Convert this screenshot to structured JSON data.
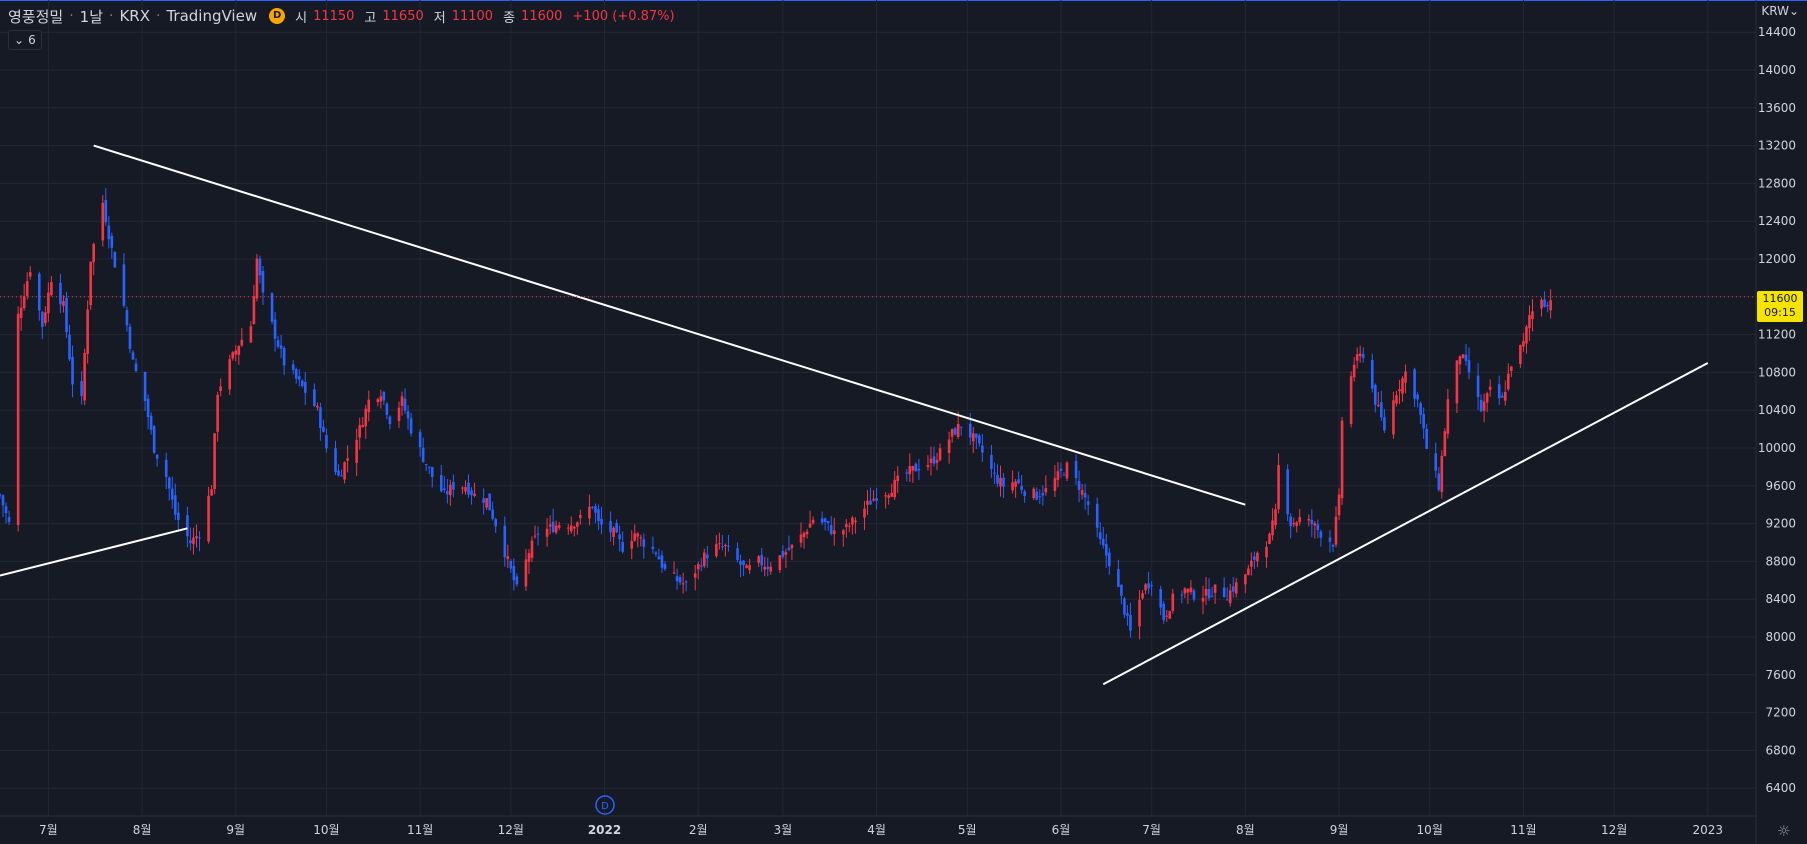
{
  "header": {
    "symbol": "영풍정밀",
    "interval": "1날",
    "exchange": "KRX",
    "source": "TradingView",
    "badge": "D",
    "open_label": "시",
    "open_value": "11150",
    "high_label": "고",
    "high_value": "11650",
    "low_label": "저",
    "low_value": "11100",
    "close_label": "종",
    "close_value": "11600",
    "change": "+100 (+0.87%)",
    "indicator_count": "6"
  },
  "currency": "KRW",
  "price_tag": {
    "price": "11600",
    "time": "09:15"
  },
  "dividend_marker": "D",
  "colors": {
    "background": "#161a25",
    "grid": "#232734",
    "up": "#f23645",
    "down": "#2962ff",
    "trendline": "#ffffff",
    "price_tag": "#f5e400"
  },
  "icons": {
    "settings": "gear-icon",
    "chevron": "chevron-down-icon"
  },
  "chart_data": {
    "type": "candlestick",
    "interval": "1D",
    "ylim": [
      6000,
      14600
    ],
    "y_ticks": [
      6400,
      6800,
      7200,
      7600,
      8000,
      8400,
      8800,
      9200,
      9600,
      10000,
      10400,
      10800,
      11200,
      11600,
      12000,
      12400,
      12800,
      13200,
      13600,
      14000,
      14400
    ],
    "x_ticks": [
      {
        "date": "2021-07-01",
        "label": "7월"
      },
      {
        "date": "2021-08-01",
        "label": "8월"
      },
      {
        "date": "2021-09-01",
        "label": "9월"
      },
      {
        "date": "2021-10-01",
        "label": "10월"
      },
      {
        "date": "2021-11-01",
        "label": "11월"
      },
      {
        "date": "2021-12-01",
        "label": "12월"
      },
      {
        "date": "2022-01-01",
        "label": "2022",
        "bold": true
      },
      {
        "date": "2022-02-01",
        "label": "2월"
      },
      {
        "date": "2022-03-01",
        "label": "3월"
      },
      {
        "date": "2022-04-01",
        "label": "4월"
      },
      {
        "date": "2022-05-01",
        "label": "5월"
      },
      {
        "date": "2022-06-01",
        "label": "6월"
      },
      {
        "date": "2022-07-01",
        "label": "7월"
      },
      {
        "date": "2022-08-01",
        "label": "8월"
      },
      {
        "date": "2022-09-01",
        "label": "9월"
      },
      {
        "date": "2022-10-01",
        "label": "10월"
      },
      {
        "date": "2022-11-01",
        "label": "11월"
      },
      {
        "date": "2022-12-01",
        "label": "12월"
      },
      {
        "date": "2023-01-01",
        "label": "2023"
      }
    ],
    "xlim": [
      "2021-06-15",
      "2023-01-10"
    ],
    "close_path": [
      [
        "2021-06-15",
        9500
      ],
      [
        "2021-06-18",
        9200
      ],
      [
        "2021-06-21",
        11400
      ],
      [
        "2021-06-25",
        11900
      ],
      [
        "2021-06-29",
        11300
      ],
      [
        "2021-07-02",
        11800
      ],
      [
        "2021-07-06",
        11500
      ],
      [
        "2021-07-09",
        10700
      ],
      [
        "2021-07-12",
        10500
      ],
      [
        "2021-07-15",
        12000
      ],
      [
        "2021-07-19",
        12600
      ],
      [
        "2021-07-22",
        12100
      ],
      [
        "2021-07-26",
        11500
      ],
      [
        "2021-07-29",
        10900
      ],
      [
        "2021-08-02",
        10500
      ],
      [
        "2021-08-05",
        10000
      ],
      [
        "2021-08-09",
        9700
      ],
      [
        "2021-08-12",
        9300
      ],
      [
        "2021-08-17",
        9000
      ],
      [
        "2021-08-20",
        9100
      ],
      [
        "2021-08-24",
        9600
      ],
      [
        "2021-08-26",
        10600
      ],
      [
        "2021-08-30",
        10900
      ],
      [
        "2021-09-02",
        11100
      ],
      [
        "2021-09-06",
        11300
      ],
      [
        "2021-09-08",
        12000
      ],
      [
        "2021-09-10",
        11600
      ],
      [
        "2021-09-14",
        11200
      ],
      [
        "2021-09-17",
        10900
      ],
      [
        "2021-09-24",
        10600
      ],
      [
        "2021-09-28",
        10400
      ],
      [
        "2021-10-01",
        10000
      ],
      [
        "2021-10-05",
        9700
      ],
      [
        "2021-10-08",
        9900
      ],
      [
        "2021-10-12",
        10200
      ],
      [
        "2021-10-15",
        10500
      ],
      [
        "2021-10-19",
        10600
      ],
      [
        "2021-10-22",
        10300
      ],
      [
        "2021-10-26",
        10500
      ],
      [
        "2021-10-29",
        10200
      ],
      [
        "2021-11-02",
        9900
      ],
      [
        "2021-11-05",
        9700
      ],
      [
        "2021-11-09",
        9500
      ],
      [
        "2021-11-12",
        9600
      ],
      [
        "2021-11-16",
        9600
      ],
      [
        "2021-11-19",
        9500
      ],
      [
        "2021-11-23",
        9450
      ],
      [
        "2021-11-26",
        9200
      ],
      [
        "2021-11-30",
        8800
      ],
      [
        "2021-12-03",
        8500
      ],
      [
        "2021-12-07",
        8900
      ],
      [
        "2021-12-10",
        9100
      ],
      [
        "2021-12-14",
        9150
      ],
      [
        "2021-12-17",
        9200
      ],
      [
        "2021-12-21",
        9200
      ],
      [
        "2021-12-24",
        9250
      ],
      [
        "2021-12-28",
        9400
      ],
      [
        "2021-12-30",
        9200
      ],
      [
        "2022-01-04",
        9100
      ],
      [
        "2022-01-07",
        8950
      ],
      [
        "2022-01-11",
        9100
      ],
      [
        "2022-01-14",
        9000
      ],
      [
        "2022-01-18",
        8900
      ],
      [
        "2022-01-21",
        8700
      ],
      [
        "2022-01-25",
        8600
      ],
      [
        "2022-01-28",
        8550
      ],
      [
        "2022-02-03",
        8850
      ],
      [
        "2022-02-07",
        8950
      ],
      [
        "2022-02-10",
        8950
      ],
      [
        "2022-02-14",
        8800
      ],
      [
        "2022-02-17",
        8700
      ],
      [
        "2022-02-21",
        8800
      ],
      [
        "2022-02-24",
        8750
      ],
      [
        "2022-02-28",
        8850
      ],
      [
        "2022-03-04",
        8950
      ],
      [
        "2022-03-08",
        9100
      ],
      [
        "2022-03-11",
        9250
      ],
      [
        "2022-03-15",
        9200
      ],
      [
        "2022-03-18",
        9100
      ],
      [
        "2022-03-22",
        9150
      ],
      [
        "2022-03-25",
        9250
      ],
      [
        "2022-03-29",
        9400
      ],
      [
        "2022-04-01",
        9500
      ],
      [
        "2022-04-05",
        9550
      ],
      [
        "2022-04-08",
        9650
      ],
      [
        "2022-04-12",
        9750
      ],
      [
        "2022-04-15",
        9800
      ],
      [
        "2022-04-19",
        9850
      ],
      [
        "2022-04-22",
        9950
      ],
      [
        "2022-04-26",
        10150
      ],
      [
        "2022-04-29",
        10250
      ],
      [
        "2022-05-03",
        10100
      ],
      [
        "2022-05-06",
        9950
      ],
      [
        "2022-05-10",
        9700
      ],
      [
        "2022-05-13",
        9600
      ],
      [
        "2022-05-17",
        9650
      ],
      [
        "2022-05-20",
        9550
      ],
      [
        "2022-05-24",
        9500
      ],
      [
        "2022-05-27",
        9550
      ],
      [
        "2022-05-31",
        9700
      ],
      [
        "2022-06-03",
        9800
      ],
      [
        "2022-06-07",
        9600
      ],
      [
        "2022-06-10",
        9400
      ],
      [
        "2022-06-14",
        9000
      ],
      [
        "2022-06-17",
        8800
      ],
      [
        "2022-06-21",
        8400
      ],
      [
        "2022-06-24",
        8050
      ],
      [
        "2022-06-28",
        8500
      ],
      [
        "2022-07-01",
        8600
      ],
      [
        "2022-07-05",
        8200
      ],
      [
        "2022-07-08",
        8400
      ],
      [
        "2022-07-12",
        8500
      ],
      [
        "2022-07-15",
        8450
      ],
      [
        "2022-07-19",
        8450
      ],
      [
        "2022-07-22",
        8500
      ],
      [
        "2022-07-26",
        8450
      ],
      [
        "2022-07-29",
        8550
      ],
      [
        "2022-08-02",
        8700
      ],
      [
        "2022-08-05",
        8900
      ],
      [
        "2022-08-09",
        9050
      ],
      [
        "2022-08-11",
        9300
      ],
      [
        "2022-08-12",
        9800
      ],
      [
        "2022-08-16",
        9200
      ],
      [
        "2022-08-19",
        9250
      ],
      [
        "2022-08-23",
        9200
      ],
      [
        "2022-08-26",
        9100
      ],
      [
        "2022-08-30",
        9000
      ],
      [
        "2022-09-01",
        9450
      ],
      [
        "2022-09-02",
        10300
      ],
      [
        "2022-09-06",
        10900
      ],
      [
        "2022-09-09",
        11000
      ],
      [
        "2022-09-13",
        10500
      ],
      [
        "2022-09-16",
        10200
      ],
      [
        "2022-09-20",
        10600
      ],
      [
        "2022-09-23",
        10800
      ],
      [
        "2022-09-27",
        10500
      ],
      [
        "2022-09-30",
        10000
      ],
      [
        "2022-10-04",
        9600
      ],
      [
        "2022-10-07",
        10500
      ],
      [
        "2022-10-11",
        11000
      ],
      [
        "2022-10-14",
        10800
      ],
      [
        "2022-10-18",
        10400
      ],
      [
        "2022-10-21",
        10600
      ],
      [
        "2022-10-25",
        10500
      ],
      [
        "2022-10-28",
        10900
      ],
      [
        "2022-11-01",
        11100
      ],
      [
        "2022-11-03",
        11400
      ],
      [
        "2022-11-07",
        11600
      ],
      [
        "2022-11-09",
        11500
      ],
      [
        "2022-11-10",
        11600
      ]
    ],
    "trendlines": [
      {
        "name": "support-left",
        "from": [
          "2021-06-15",
          8650
        ],
        "to": [
          "2021-08-16",
          9150
        ]
      },
      {
        "name": "resistance-top",
        "from": [
          "2021-07-16",
          13200
        ],
        "to": [
          "2022-08-01",
          9400
        ]
      },
      {
        "name": "support-rising",
        "from": [
          "2022-06-15",
          7500
        ],
        "to": [
          "2023-01-01",
          10900
        ]
      }
    ],
    "last_price": 11600
  }
}
